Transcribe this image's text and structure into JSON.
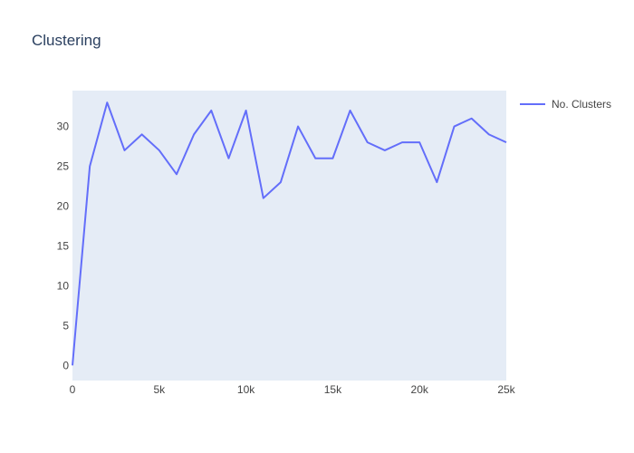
{
  "chart_data": {
    "type": "line",
    "title": "Clustering",
    "xlabel": "",
    "ylabel": "",
    "xlim": [
      0,
      25000
    ],
    "ylim": [
      -1.9,
      34.5
    ],
    "x_ticks": [
      0,
      5000,
      10000,
      15000,
      20000,
      25000
    ],
    "x_tick_labels": [
      "0",
      "5k",
      "10k",
      "15k",
      "20k",
      "25k"
    ],
    "y_ticks": [
      0,
      5,
      10,
      15,
      20,
      25,
      30
    ],
    "y_tick_labels": [
      "0",
      "5",
      "10",
      "15",
      "20",
      "25",
      "30"
    ],
    "grid": false,
    "legend": "top-right",
    "background_color": "#e5ecf6",
    "series": [
      {
        "name": "No. Clusters",
        "color": "#636efa",
        "x": [
          0,
          1000,
          2000,
          3000,
          4000,
          5000,
          6000,
          7000,
          8000,
          9000,
          10000,
          11000,
          12000,
          13000,
          14000,
          15000,
          16000,
          17000,
          18000,
          19000,
          20000,
          21000,
          22000,
          23000,
          24000,
          25000
        ],
        "y": [
          0,
          25,
          33,
          27,
          29,
          27,
          24,
          29,
          32,
          26,
          32,
          21,
          23,
          30,
          26,
          26,
          32,
          28,
          27,
          28,
          28,
          23,
          30,
          31,
          29,
          28
        ]
      }
    ]
  }
}
